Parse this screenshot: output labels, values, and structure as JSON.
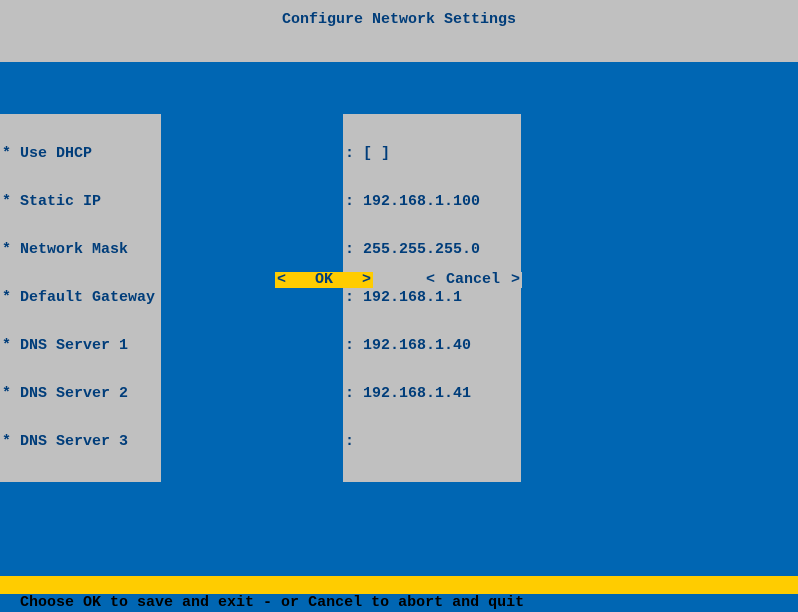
{
  "colors": {
    "background": "#0066b3",
    "panel": "#c0c0c0",
    "text": "#003d7a",
    "highlight": "#ffcc00",
    "footer_text": "#000000"
  },
  "header": {
    "title": "Configure Network Settings"
  },
  "fields": {
    "prefix": "*",
    "separator": ":",
    "items": [
      {
        "label": "Use DHCP",
        "value": "[ ]"
      },
      {
        "label": "Static IP",
        "value": "192.168.1.100"
      },
      {
        "label": "Network Mask",
        "value": "255.255.255.0"
      },
      {
        "label": "Default Gateway",
        "value": "192.168.1.1"
      },
      {
        "label": "DNS Server 1",
        "value": "192.168.1.40"
      },
      {
        "label": "DNS Server 2",
        "value": "192.168.1.41"
      },
      {
        "label": "DNS Server 3",
        "value": ""
      }
    ]
  },
  "buttons": {
    "ok": "OK",
    "cancel": "Cancel",
    "angle_left": "<",
    "angle_right": ">"
  },
  "footer": {
    "text": "Choose OK to save and exit - or Cancel to abort and quit"
  }
}
